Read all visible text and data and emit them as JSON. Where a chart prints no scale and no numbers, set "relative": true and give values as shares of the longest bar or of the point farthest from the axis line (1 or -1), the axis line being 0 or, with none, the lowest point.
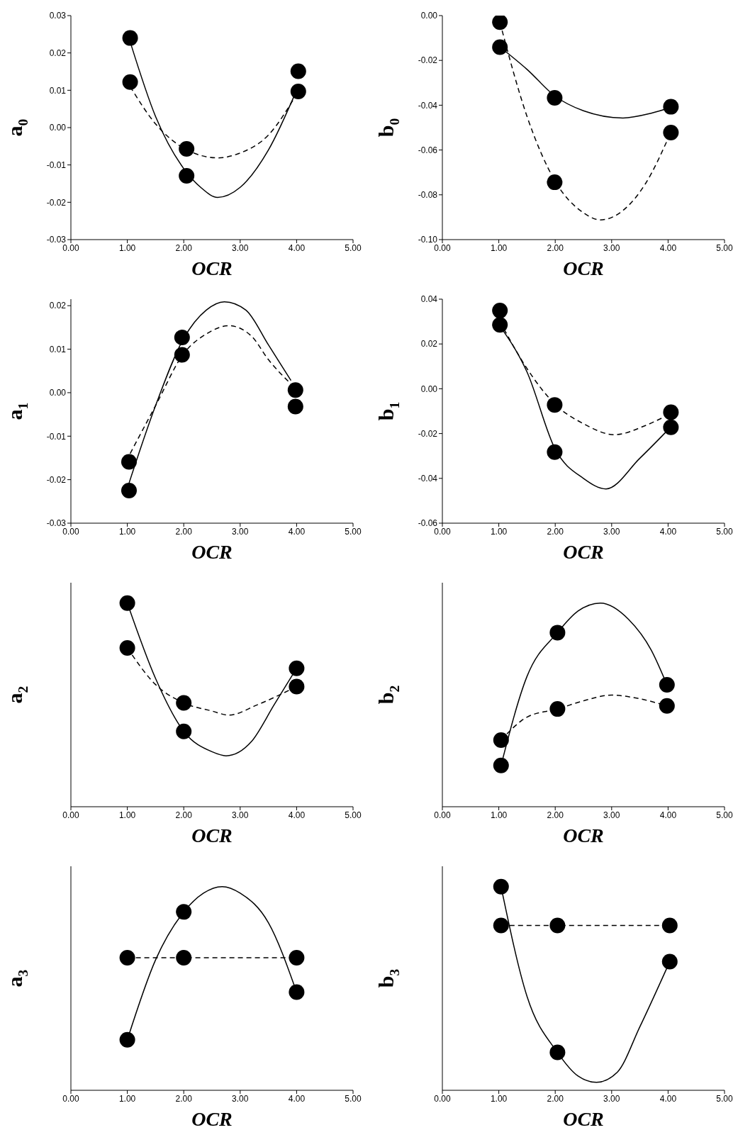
{
  "chart_data": [
    {
      "type": "scatter",
      "ylabel": "a$_{0}$",
      "xlabel": "OCR",
      "xlim": [
        0,
        5
      ],
      "xticks": [
        {
          "value": 0,
          "label": "0.00"
        },
        {
          "value": 1,
          "label": "1.00"
        },
        {
          "value": 2,
          "label": "2.00"
        },
        {
          "value": 3,
          "label": "3.00"
        },
        {
          "value": 4,
          "label": "4.00"
        },
        {
          "value": 5,
          "label": "5.00"
        }
      ],
      "ylim": [
        -0.03,
        0.03
      ],
      "yticks": [
        {
          "value": -0.03,
          "label": "-0.03"
        },
        {
          "value": -0.02,
          "label": "-0.02"
        },
        {
          "value": -0.01,
          "label": "-0.01"
        },
        {
          "value": 0,
          "label": "0.00"
        },
        {
          "value": 0.01,
          "label": "0.01"
        },
        {
          "value": 0.02,
          "label": "0.02"
        },
        {
          "value": 0.03,
          "label": "0.03"
        }
      ],
      "legend": false,
      "series": [
        {
          "type": "line",
          "color": "#000000",
          "line_style": "solid",
          "x": [
            1.05,
            1.5,
            2,
            2.3,
            2.6,
            3,
            3.5,
            4
          ],
          "values": [
            0.023,
            0.003,
            -0.011,
            -0.016,
            -0.0187,
            -0.016,
            -0.006,
            0.01
          ]
        },
        {
          "type": "line",
          "color": "#000000",
          "line_style": "dashed",
          "x": [
            1.05,
            1.5,
            2,
            2.6,
            3,
            3.5,
            4
          ],
          "values": [
            0.011,
            0.001,
            -0.0055,
            -0.0081,
            -0.0068,
            -0.002,
            0.009
          ]
        },
        {
          "type": "scatter",
          "color": "#000000",
          "marker": "circle",
          "x": [
            1.05,
            1.05,
            2.05,
            2.05,
            4.03,
            4.03
          ],
          "values": [
            0.024,
            0.0122,
            -0.0057,
            -0.0129,
            0.0151,
            0.0097
          ]
        }
      ]
    },
    {
      "type": "scatter",
      "ylabel": "b$_{0}$",
      "xlabel": "OCR",
      "xlim": [
        0,
        5
      ],
      "xticks": [
        {
          "value": 0,
          "label": "0.00"
        },
        {
          "value": 1,
          "label": "1.00"
        },
        {
          "value": 2,
          "label": "2.00"
        },
        {
          "value": 3,
          "label": "3.00"
        },
        {
          "value": 4,
          "label": "4.00"
        },
        {
          "value": 5,
          "label": "5.00"
        }
      ],
      "ylim": [
        -0.1,
        0
      ],
      "yticks": [
        {
          "value": -0.1,
          "label": "-0.10"
        },
        {
          "value": -0.08,
          "label": "-0.08"
        },
        {
          "value": -0.06,
          "label": "-0.06"
        },
        {
          "value": -0.04,
          "label": "-0.04"
        },
        {
          "value": -0.02,
          "label": "-0.02"
        },
        {
          "value": 0,
          "label": "0.00"
        }
      ],
      "legend": false,
      "series": [
        {
          "type": "line",
          "color": "#000000",
          "line_style": "solid",
          "x": [
            1.02,
            1.5,
            2,
            2.5,
            3.2,
            3.7,
            4.05
          ],
          "values": [
            -0.014,
            -0.024,
            -0.036,
            -0.0425,
            -0.0457,
            -0.0436,
            -0.041
          ]
        },
        {
          "type": "line",
          "color": "#000000",
          "line_style": "dashed",
          "x": [
            1.02,
            1.5,
            2,
            2.5,
            2.8,
            3.2,
            3.6,
            4.05
          ],
          "values": [
            -0.003,
            -0.045,
            -0.074,
            -0.088,
            -0.0912,
            -0.087,
            -0.075,
            -0.052
          ]
        },
        {
          "type": "scatter",
          "color": "#000000",
          "marker": "circle",
          "x": [
            1.02,
            1.02,
            1.99,
            1.99,
            4.05,
            4.05
          ],
          "values": [
            -0.0029,
            -0.0141,
            -0.0367,
            -0.0744,
            -0.0407,
            -0.0522
          ]
        }
      ]
    },
    {
      "type": "scatter",
      "ylabel": "a$_{1}$",
      "xlabel": "OCR",
      "xlim": [
        0,
        5
      ],
      "xticks": [
        {
          "value": 0,
          "label": "0.00"
        },
        {
          "value": 1,
          "label": "1.00"
        },
        {
          "value": 2,
          "label": "2.00"
        },
        {
          "value": 3,
          "label": "3.00"
        },
        {
          "value": 4,
          "label": "4.00"
        },
        {
          "value": 5,
          "label": "5.00"
        }
      ],
      "ylim": [
        -0.03,
        0.0215
      ],
      "yticks": [
        {
          "value": -0.03,
          "label": "-0.03"
        },
        {
          "value": -0.02,
          "label": "-0.02"
        },
        {
          "value": -0.01,
          "label": "-0.01"
        },
        {
          "value": 0,
          "label": "0.00"
        },
        {
          "value": 0.01,
          "label": "0.01"
        },
        {
          "value": 0.02,
          "label": "0.02"
        }
      ],
      "legend": false,
      "series": [
        {
          "type": "line",
          "color": "#000000",
          "line_style": "solid",
          "x": [
            1,
            1.5,
            2,
            2.4,
            2.72,
            3.1,
            3.5,
            3.9
          ],
          "values": [
            -0.022,
            -0.003,
            0.0125,
            0.019,
            0.0209,
            0.019,
            0.011,
            0.0028
          ]
        },
        {
          "type": "line",
          "color": "#000000",
          "line_style": "dashed",
          "x": [
            1.05,
            1.5,
            2,
            2.4,
            2.8,
            3.2,
            3.5,
            3.9
          ],
          "values": [
            -0.014,
            -0.003,
            0.009,
            0.0135,
            0.0154,
            0.013,
            0.0076,
            0.002
          ]
        },
        {
          "type": "scatter",
          "color": "#000000",
          "marker": "circle",
          "x": [
            1.03,
            1.03,
            1.97,
            1.97,
            3.98,
            3.98
          ],
          "values": [
            -0.0159,
            -0.0225,
            0.0127,
            0.0087,
            0.0006,
            -0.0032
          ]
        }
      ]
    },
    {
      "type": "scatter",
      "ylabel": "b$_{1}$",
      "xlabel": "OCR",
      "xlim": [
        0,
        5
      ],
      "xticks": [
        {
          "value": 0,
          "label": "0.00"
        },
        {
          "value": 1,
          "label": "1.00"
        },
        {
          "value": 2,
          "label": "2.00"
        },
        {
          "value": 3,
          "label": "3.00"
        },
        {
          "value": 4,
          "label": "4.00"
        },
        {
          "value": 5,
          "label": "5.00"
        }
      ],
      "ylim": [
        -0.06,
        0.04
      ],
      "yticks": [
        {
          "value": -0.06,
          "label": "-0.06"
        },
        {
          "value": -0.04,
          "label": "-0.04"
        },
        {
          "value": -0.02,
          "label": "-0.02"
        },
        {
          "value": 0,
          "label": "0.00"
        },
        {
          "value": 0.02,
          "label": "0.02"
        },
        {
          "value": 0.04,
          "label": "0.04"
        }
      ],
      "legend": false,
      "series": [
        {
          "type": "line",
          "color": "#000000",
          "line_style": "solid",
          "x": [
            1.02,
            1.5,
            2,
            2.5,
            2.9,
            3.5,
            4.05
          ],
          "values": [
            0.028,
            0.0075,
            -0.027,
            -0.04,
            -0.0447,
            -0.031,
            -0.017
          ]
        },
        {
          "type": "line",
          "color": "#000000",
          "line_style": "dashed",
          "x": [
            1.02,
            1.5,
            2,
            2.5,
            3.05,
            3.6,
            4.05
          ],
          "values": [
            0.03,
            0.009,
            -0.007,
            -0.0156,
            -0.0205,
            -0.0164,
            -0.011
          ]
        },
        {
          "type": "scatter",
          "color": "#000000",
          "marker": "circle",
          "x": [
            1.02,
            1.02,
            1.99,
            1.99,
            4.05,
            4.05
          ],
          "values": [
            0.0349,
            0.0285,
            -0.0072,
            -0.0283,
            -0.0105,
            -0.0172
          ]
        }
      ]
    },
    {
      "type": "scatter",
      "relative": true,
      "ylabel": "a$_{2}$",
      "xlabel": "OCR",
      "xlim": [
        0,
        5
      ],
      "xticks": [
        {
          "value": 0,
          "label": "0.00"
        },
        {
          "value": 1,
          "label": "1.00"
        },
        {
          "value": 2,
          "label": "2.00"
        },
        {
          "value": 3,
          "label": "3.00"
        },
        {
          "value": 4,
          "label": "4.00"
        },
        {
          "value": 5,
          "label": "5.00"
        }
      ],
      "legend": false,
      "series": [
        {
          "type": "line",
          "color": "#000000",
          "line_style": "solid",
          "x": [
            1,
            1.5,
            2,
            2.5,
            2.75,
            3.2,
            3.6,
            4
          ],
          "values": [
            1,
            0.63,
            0.37,
            0.27,
            0.25,
            0.32,
            0.5,
            0.68
          ]
        },
        {
          "type": "line",
          "color": "#000000",
          "line_style": "dashed",
          "x": [
            1,
            1.5,
            2,
            2.5,
            2.8,
            3.3,
            4
          ],
          "values": [
            0.78,
            0.6,
            0.51,
            0.47,
            0.45,
            0.5,
            0.59
          ]
        },
        {
          "type": "scatter",
          "color": "#000000",
          "marker": "circle",
          "x": [
            1,
            1,
            2,
            2,
            4,
            4
          ],
          "values": [
            1,
            0.78,
            0.37,
            0.51,
            0.68,
            0.59
          ]
        }
      ]
    },
    {
      "type": "scatter",
      "relative": true,
      "ylabel": "b$_{2}$",
      "xlabel": "OCR",
      "xlim": [
        0,
        5
      ],
      "xticks": [
        {
          "value": 0,
          "label": "0.00"
        },
        {
          "value": 1,
          "label": "1.00"
        },
        {
          "value": 2,
          "label": "2.00"
        },
        {
          "value": 3,
          "label": "3.00"
        },
        {
          "value": 4,
          "label": "4.00"
        },
        {
          "value": 5,
          "label": "5.00"
        }
      ],
      "legend": false,
      "series": [
        {
          "type": "line",
          "color": "#000000",
          "line_style": "solid",
          "x": [
            1.04,
            1.5,
            2.04,
            2.4,
            2.8,
            3.3,
            3.7,
            3.98
          ],
          "values": [
            0.203,
            0.64,
            0.855,
            0.96,
            1,
            0.92,
            0.77,
            0.599
          ]
        },
        {
          "type": "line",
          "color": "#000000",
          "line_style": "dashed",
          "x": [
            1.04,
            1.5,
            2.04,
            2.5,
            3,
            3.5,
            3.98
          ],
          "values": [
            0.327,
            0.44,
            0.48,
            0.52,
            0.548,
            0.53,
            0.495
          ]
        },
        {
          "type": "scatter",
          "color": "#000000",
          "marker": "circle",
          "x": [
            1.04,
            1.04,
            2.04,
            2.04,
            3.98,
            3.98
          ],
          "values": [
            0.327,
            0.203,
            0.855,
            0.48,
            0.599,
            0.495
          ]
        }
      ]
    },
    {
      "type": "scatter",
      "relative": true,
      "ylabel": "a$_{3}$",
      "xlabel": "OCR",
      "xlim": [
        0,
        5
      ],
      "xticks": [
        {
          "value": 0,
          "label": "0.00"
        },
        {
          "value": 1,
          "label": "1.00"
        },
        {
          "value": 2,
          "label": "2.00"
        },
        {
          "value": 3,
          "label": "3.00"
        },
        {
          "value": 4,
          "label": "4.00"
        },
        {
          "value": 5,
          "label": "5.00"
        }
      ],
      "legend": false,
      "series": [
        {
          "type": "line",
          "color": "#000000",
          "line_style": "solid",
          "x": [
            1,
            1.5,
            2,
            2.35,
            2.68,
            3,
            3.5,
            4
          ],
          "values": [
            0.248,
            0.64,
            0.876,
            0.968,
            1,
            0.968,
            0.823,
            0.482
          ]
        },
        {
          "type": "line",
          "color": "#000000",
          "line_style": "dashed",
          "x": [
            1,
            2,
            4
          ],
          "values": [
            0.651,
            0.651,
            0.651
          ]
        },
        {
          "type": "scatter",
          "color": "#000000",
          "marker": "circle",
          "x": [
            1,
            1,
            2,
            2,
            4,
            4
          ],
          "values": [
            0.651,
            0.248,
            0.876,
            0.651,
            0.651,
            0.482
          ]
        }
      ]
    },
    {
      "type": "scatter",
      "relative": true,
      "ylabel": "b$_{3}$",
      "xlabel": "OCR",
      "xlim": [
        0,
        5
      ],
      "xticks": [
        {
          "value": 0,
          "label": "0.00"
        },
        {
          "value": 1,
          "label": "1.00"
        },
        {
          "value": 2,
          "label": "2.00"
        },
        {
          "value": 3,
          "label": "3.00"
        },
        {
          "value": 4,
          "label": "4.00"
        },
        {
          "value": 5,
          "label": "5.00"
        }
      ],
      "legend": false,
      "series": [
        {
          "type": "line",
          "color": "#000000",
          "line_style": "solid",
          "x": [
            1.04,
            1.5,
            2.04,
            2.4,
            2.73,
            3.1,
            3.5,
            4.03
          ],
          "values": [
            1,
            0.461,
            0.186,
            0.071,
            0.039,
            0.089,
            0.312,
            0.632
          ]
        },
        {
          "type": "line",
          "color": "#000000",
          "line_style": "dashed",
          "x": [
            1.04,
            2.04,
            4.03
          ],
          "values": [
            0.809,
            0.809,
            0.809
          ]
        },
        {
          "type": "scatter",
          "color": "#000000",
          "marker": "circle",
          "x": [
            1.04,
            1.04,
            2.04,
            2.04,
            4.03,
            4.03
          ],
          "values": [
            1,
            0.809,
            0.809,
            0.186,
            0.809,
            0.632
          ]
        }
      ]
    }
  ]
}
